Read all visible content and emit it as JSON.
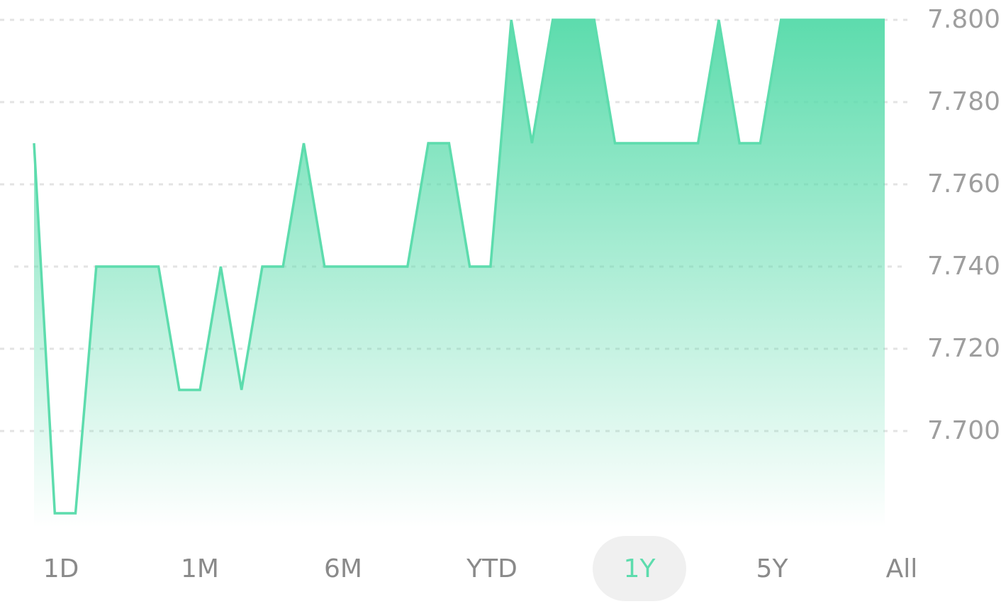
{
  "accent_color": "#5ddcad",
  "grid_color": "#e3e3e3",
  "chart_data": {
    "type": "area",
    "y_ticks": [
      "7.800",
      "7.780",
      "7.760",
      "7.740",
      "7.720",
      "7.700"
    ],
    "y_tick_values": [
      7.8,
      7.78,
      7.76,
      7.74,
      7.72,
      7.7
    ],
    "ylim": [
      7.68,
      7.8
    ],
    "grid": true,
    "series": [
      {
        "values": [
          7.77,
          7.68,
          7.68,
          7.74,
          7.74,
          7.74,
          7.74,
          7.71,
          7.71,
          7.74,
          7.71,
          7.74,
          7.74,
          7.77,
          7.74,
          7.74,
          7.74,
          7.74,
          7.74,
          7.77,
          7.77,
          7.74,
          7.74,
          7.8,
          7.77,
          7.8,
          7.8,
          7.8,
          7.77,
          7.77,
          7.77,
          7.77,
          7.77,
          7.8,
          7.77,
          7.77,
          7.8,
          7.8,
          7.8,
          7.8,
          7.8,
          7.8
        ]
      }
    ]
  },
  "range_tabs": [
    {
      "label": "1D",
      "active": false
    },
    {
      "label": "1M",
      "active": false
    },
    {
      "label": "6M",
      "active": false
    },
    {
      "label": "YTD",
      "active": false
    },
    {
      "label": "1Y",
      "active": true
    },
    {
      "label": "5Y",
      "active": false
    },
    {
      "label": "All",
      "active": false
    }
  ]
}
